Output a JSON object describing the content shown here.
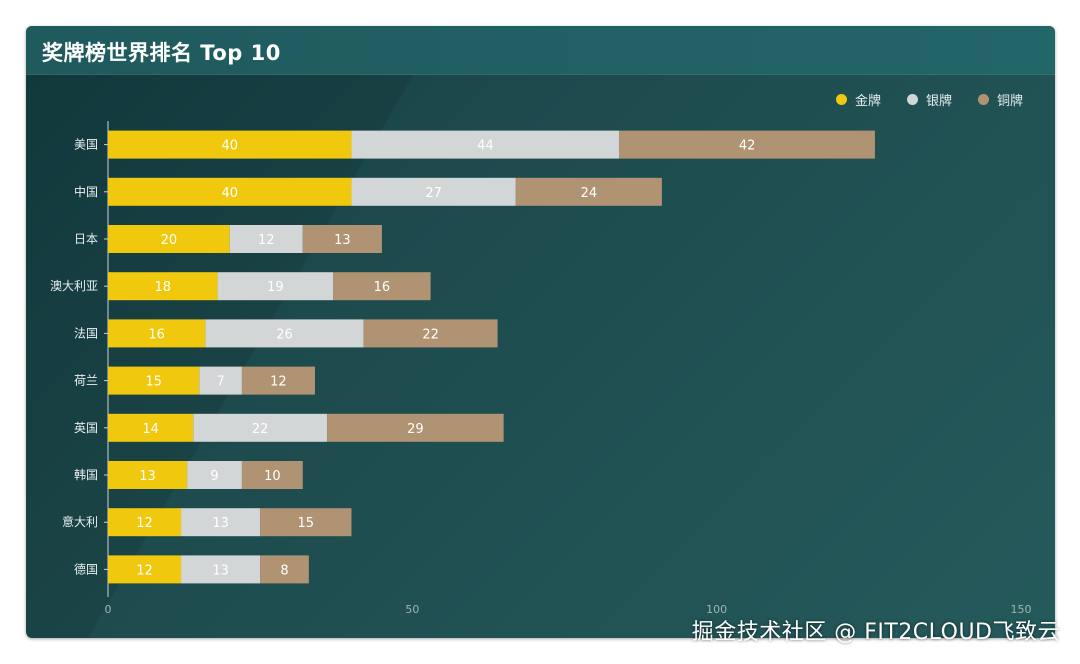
{
  "title": "奖牌榜世界排名 Top 10",
  "watermark": "掘金技术社区 @ FIT2CLOUD飞致云",
  "colors": {
    "gold": "#f0c90f",
    "silver": "#d3d6d7",
    "bronze": "#b09372"
  },
  "chart_data": {
    "type": "bar",
    "orientation": "horizontal",
    "stacked": true,
    "categories": [
      "美国",
      "中国",
      "日本",
      "澳大利亚",
      "法国",
      "荷兰",
      "英国",
      "韩国",
      "意大利",
      "德国"
    ],
    "series": [
      {
        "name": "金牌",
        "color": "#f0c90f",
        "values": [
          40,
          40,
          20,
          18,
          16,
          15,
          14,
          13,
          12,
          12
        ]
      },
      {
        "name": "银牌",
        "color": "#d3d6d7",
        "values": [
          44,
          27,
          12,
          19,
          26,
          7,
          22,
          9,
          13,
          13
        ]
      },
      {
        "name": "铜牌",
        "color": "#b09372",
        "values": [
          42,
          24,
          13,
          16,
          22,
          12,
          29,
          10,
          15,
          8
        ]
      }
    ],
    "xlim": [
      0,
      150
    ],
    "xticks": [
      0,
      50,
      100,
      150
    ],
    "legend_position": "top-right",
    "grid": false,
    "data_labels": true
  }
}
